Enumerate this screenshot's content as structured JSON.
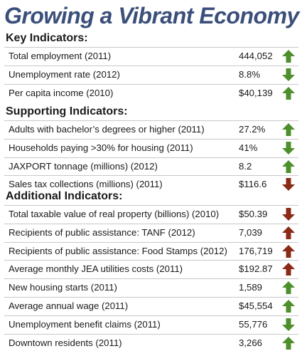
{
  "title": "Growing a Vibrant Economy",
  "colors": {
    "title": "#3a4f7a",
    "good": "#4d8f2a",
    "bad": "#8a2b18"
  },
  "sections": [
    {
      "heading": "Key Indicators:",
      "rows": [
        {
          "label": "Total employment (2011)",
          "value": "444,052",
          "arrow": "up-arrow-icon",
          "tone": "good"
        },
        {
          "label": "Unemployment rate (2012)",
          "value": "8.8%",
          "arrow": "down-arrow-icon",
          "tone": "good"
        },
        {
          "label": "Per capita income (2010)",
          "value": "$40,139",
          "arrow": "up-arrow-icon",
          "tone": "good"
        }
      ]
    },
    {
      "heading": "Supporting Indicators:",
      "rows": [
        {
          "label": "Adults with bachelor’s degrees or higher (2011)",
          "value": "27.2%",
          "arrow": "up-arrow-icon",
          "tone": "good"
        },
        {
          "label": "Households paying >30% for housing (2011)",
          "value": "41%",
          "arrow": "down-arrow-icon",
          "tone": "good"
        },
        {
          "label": "JAXPORT tonnage (millions) (2012)",
          "value": "8.2",
          "arrow": "up-arrow-icon",
          "tone": "good"
        },
        {
          "label": "Sales tax collections (millions) (2011)",
          "value": "$116.6",
          "arrow": "down-arrow-icon",
          "tone": "bad"
        }
      ]
    },
    {
      "heading": "Additional Indicators:",
      "rows": [
        {
          "label": "Total taxable value of real property (billions) (2010)",
          "value": "$50.39",
          "arrow": "down-arrow-icon",
          "tone": "bad"
        },
        {
          "label": "Recipients of public assistance: TANF (2012)",
          "value": "7,039",
          "arrow": "up-arrow-icon",
          "tone": "bad"
        },
        {
          "label": "Recipients of public assistance: Food Stamps (2012)",
          "value": "176,719",
          "arrow": "up-arrow-icon",
          "tone": "bad"
        },
        {
          "label": "Average monthly JEA utilities costs (2011)",
          "value": "$192.87",
          "arrow": "up-arrow-icon",
          "tone": "bad"
        },
        {
          "label": "New housing starts (2011)",
          "value": "1,589",
          "arrow": "up-arrow-icon",
          "tone": "good"
        },
        {
          "label": "Average annual wage (2011)",
          "value": "$45,554",
          "arrow": "up-arrow-icon",
          "tone": "good"
        },
        {
          "label": "Unemployment benefit claims (2011)",
          "value": "55,776",
          "arrow": "down-arrow-icon",
          "tone": "good"
        },
        {
          "label": "Downtown residents (2011)",
          "value": "3,266",
          "arrow": "up-arrow-icon",
          "tone": "good"
        }
      ]
    }
  ]
}
